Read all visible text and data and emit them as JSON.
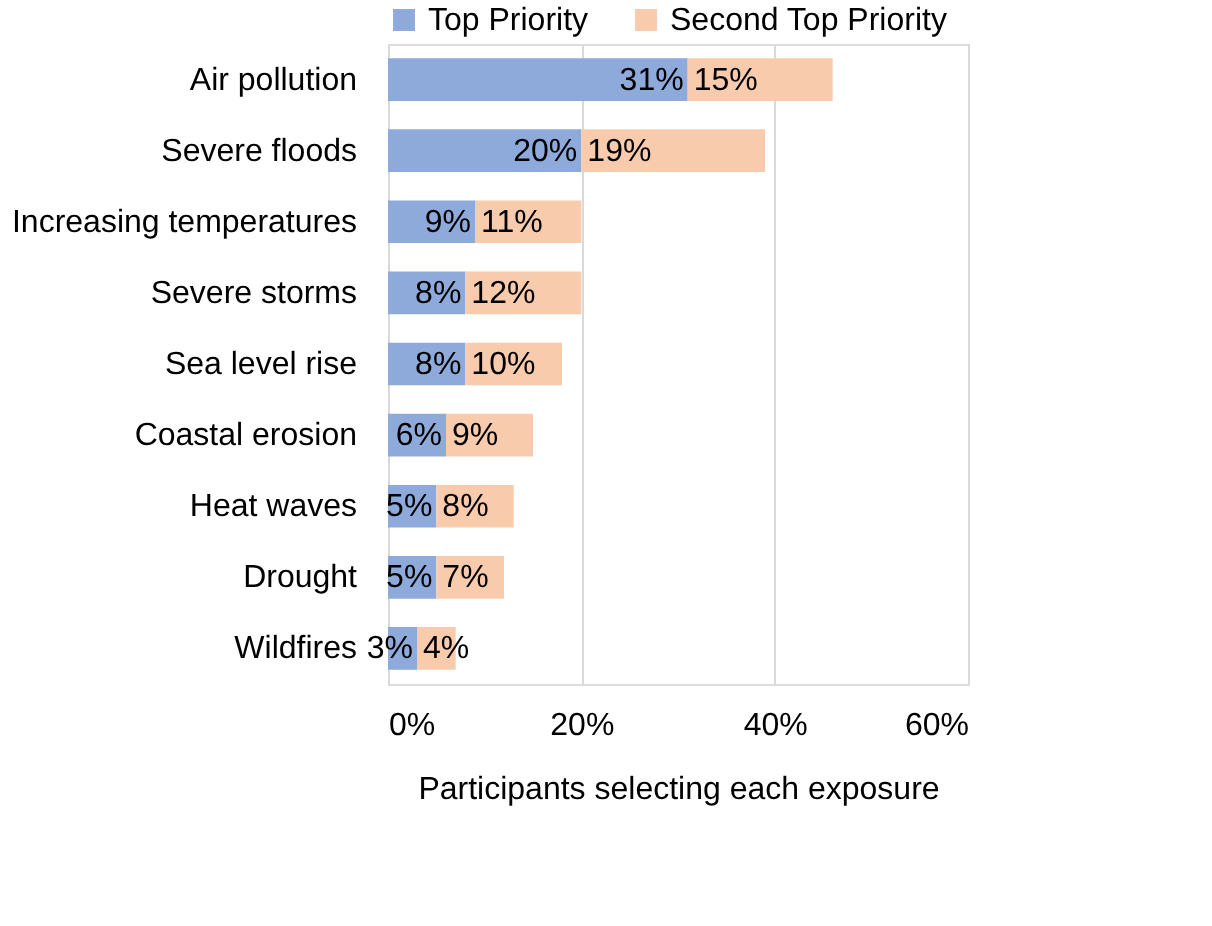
{
  "chart_data": {
    "type": "bar",
    "orientation": "horizontal",
    "stacked": true,
    "xlabel": "Participants selecting each exposure",
    "categories": [
      "Air pollution",
      "Severe floods",
      "Increasing temperatures",
      "Severe storms",
      "Sea level rise",
      "Coastal erosion",
      "Heat waves",
      "Drought",
      "Wildfires"
    ],
    "series": [
      {
        "name": "Top Priority",
        "color": "#8eaadb",
        "values": [
          31,
          20,
          9,
          8,
          8,
          6,
          5,
          5,
          3
        ],
        "value_labels": [
          "31%",
          "20%",
          "9%",
          "8%",
          "8%",
          "6%",
          "5%",
          "5%",
          "3%"
        ]
      },
      {
        "name": "Second Top Priority",
        "color": "#f8cbad",
        "values": [
          15,
          19,
          11,
          12,
          10,
          9,
          8,
          7,
          4
        ],
        "value_labels": [
          "15%",
          "19%",
          "11%",
          "12%",
          "10%",
          "9%",
          "8%",
          "7%",
          "4%"
        ]
      }
    ],
    "xlim": [
      0,
      60
    ],
    "xticks": [
      {
        "value": 0,
        "label": "0%"
      },
      {
        "value": 20,
        "label": "20%"
      },
      {
        "value": 40,
        "label": "40%"
      },
      {
        "value": 60,
        "label": "60%"
      }
    ],
    "grid": "x",
    "legend": "top"
  }
}
